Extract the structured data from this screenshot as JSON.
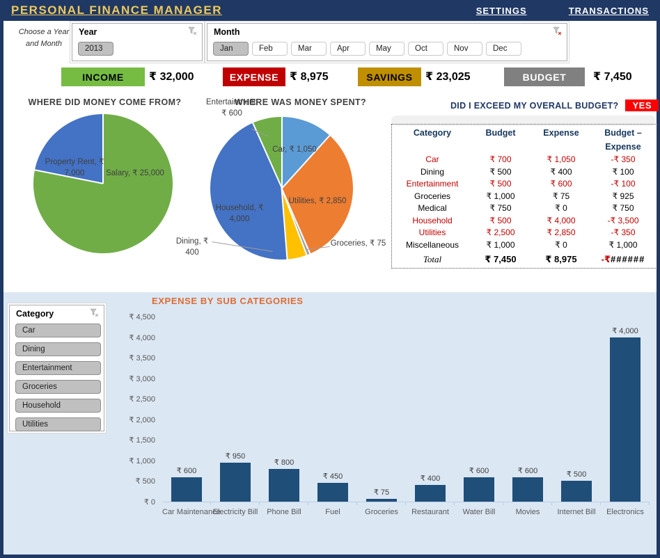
{
  "header": {
    "title": "PERSONAL FINANCE MANAGER",
    "nav": [
      {
        "label": "SETTINGS"
      },
      {
        "label": "TRANSACTIONS"
      }
    ]
  },
  "filters": {
    "note": "Choose a Year and Month",
    "year": {
      "title": "Year",
      "items": [
        {
          "label": "2013",
          "selected": true
        }
      ]
    },
    "month": {
      "title": "Month",
      "items": [
        {
          "label": "Jan",
          "selected": true
        },
        {
          "label": "Feb",
          "selected": false
        },
        {
          "label": "Mar",
          "selected": false
        },
        {
          "label": "Apr",
          "selected": false
        },
        {
          "label": "May",
          "selected": false
        },
        {
          "label": "Oct",
          "selected": false
        },
        {
          "label": "Nov",
          "selected": false
        },
        {
          "label": "Dec",
          "selected": false
        }
      ]
    }
  },
  "kpis": [
    {
      "label": "INCOME",
      "value": "₹ 32,000",
      "bg": "#76BC43",
      "fg": "#000000"
    },
    {
      "label": "EXPENSE",
      "value": "₹ 8,975",
      "bg": "#C00000",
      "fg": "#FFFFFF"
    },
    {
      "label": "SAVINGS",
      "value": "₹ 23,025",
      "bg": "#BF8F00",
      "fg": "#000000"
    },
    {
      "label": "BUDGET",
      "value": "₹ 7,450",
      "bg": "#808080",
      "fg": "#FFFFFF"
    }
  ],
  "budget_panel": {
    "question": "DID I EXCEED MY OVERALL BUDGET?",
    "answer": "YES",
    "answer_bg": "#FF0000",
    "table": {
      "headers": [
        "Category",
        "Budget",
        "Expense",
        "Budget – Expense"
      ],
      "rows": [
        {
          "category": "Car",
          "budget": "₹ 700",
          "expense": "₹ 1,050",
          "diff": "-₹ 350",
          "exceeded": true
        },
        {
          "category": "Dining",
          "budget": "₹ 500",
          "expense": "₹ 400",
          "diff": "₹ 100",
          "exceeded": false
        },
        {
          "category": "Entertainment",
          "budget": "₹ 500",
          "expense": "₹ 600",
          "diff": "-₹ 100",
          "exceeded": true
        },
        {
          "category": "Groceries",
          "budget": "₹ 1,000",
          "expense": "₹ 75",
          "diff": "₹ 925",
          "exceeded": false
        },
        {
          "category": "Medical",
          "budget": "₹ 750",
          "expense": "₹ 0",
          "diff": "₹ 750",
          "exceeded": false
        },
        {
          "category": "Household",
          "budget": "₹ 500",
          "expense": "₹ 4,000",
          "diff": "-₹ 3,500",
          "exceeded": true
        },
        {
          "category": "Utilities",
          "budget": "₹ 2,500",
          "expense": "₹ 2,850",
          "diff": "-₹ 350",
          "exceeded": true
        },
        {
          "category": "Miscellaneous",
          "budget": "₹ 1,000",
          "expense": "₹ 0",
          "diff": "₹ 1,000",
          "exceeded": false
        }
      ],
      "total": {
        "label": "Total",
        "budget": "₹ 7,450",
        "expense": "₹ 8,975",
        "diff_prefix": "-₹",
        "diff_overflow": "######"
      }
    }
  },
  "category_slicer": {
    "title": "Category",
    "items": [
      {
        "label": "Car",
        "selected": true
      },
      {
        "label": "Dining",
        "selected": true
      },
      {
        "label": "Entertainment",
        "selected": true
      },
      {
        "label": "Groceries",
        "selected": true
      },
      {
        "label": "Household",
        "selected": true
      },
      {
        "label": "Utilities",
        "selected": true
      }
    ]
  },
  "chart_data": [
    {
      "id": "income_pie",
      "type": "pie",
      "title": "WHERE DID MONEY COME FROM?",
      "slices": [
        {
          "name": "Salary",
          "value": 25000,
          "color": "#70AD47",
          "label": "Salary, ₹ 25,000"
        },
        {
          "name": "Property Rent",
          "value": 7000,
          "color": "#4472C4",
          "label": "Property Rent, ₹ 7,000"
        }
      ]
    },
    {
      "id": "expense_pie",
      "type": "pie",
      "title": "WHERE WAS MONEY SPENT?",
      "slices": [
        {
          "name": "Car",
          "value": 1050,
          "color": "#5B9BD5",
          "label": "Car, ₹ 1,050"
        },
        {
          "name": "Utilities",
          "value": 2850,
          "color": "#ED7D31",
          "label": "Utilities, ₹ 2,850"
        },
        {
          "name": "Groceries",
          "value": 75,
          "color": "#A5A5A5",
          "label": "Groceries, ₹ 75"
        },
        {
          "name": "Dining",
          "value": 400,
          "color": "#FFC000",
          "label": "Dining, ₹ 400"
        },
        {
          "name": "Household",
          "value": 4000,
          "color": "#4472C4",
          "label": "Household, ₹ 4,000"
        },
        {
          "name": "Entertainment",
          "value": 600,
          "color": "#70AD47",
          "label": "Entertainment, ₹ 600"
        }
      ]
    },
    {
      "id": "subcategory_bar",
      "type": "bar",
      "title": "EXPENSE BY SUB CATEGORIES",
      "categories": [
        "Car Maintenance",
        "Electricity Bill",
        "Phone Bill",
        "Fuel",
        "Groceries",
        "Restaurant",
        "Water Bill",
        "Movies",
        "Internet Bill",
        "Electronics"
      ],
      "values": [
        600,
        950,
        800,
        450,
        75,
        400,
        600,
        600,
        500,
        4000
      ],
      "value_labels": [
        "₹ 600",
        "₹ 950",
        "₹ 800",
        "₹ 450",
        "₹ 75",
        "₹ 400",
        "₹ 600",
        "₹ 600",
        "₹ 500",
        "₹ 4,000"
      ],
      "ylim": [
        0,
        4500
      ],
      "ytick_step": 500,
      "ytick_labels": [
        "₹ 0",
        "₹ 500",
        "₹ 1,000",
        "₹ 1,500",
        "₹ 2,000",
        "₹ 2,500",
        "₹ 3,000",
        "₹ 3,500",
        "₹ 4,000",
        "₹ 4,500"
      ],
      "bar_color": "#1F4E79",
      "grid": false,
      "legend": false
    }
  ]
}
